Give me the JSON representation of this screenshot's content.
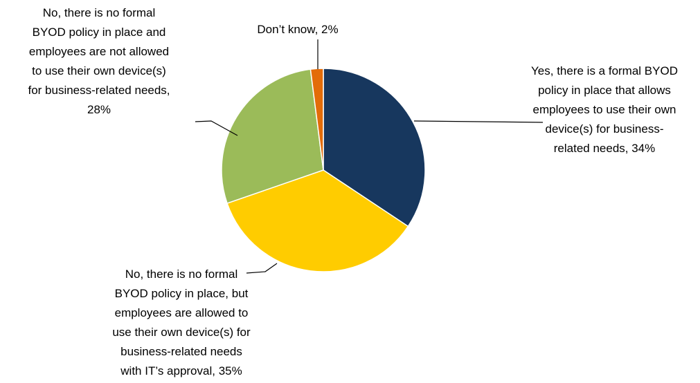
{
  "chart_data": {
    "type": "pie",
    "title": "",
    "slices": [
      {
        "label_lines": [
          "Yes, there is a formal BYOD",
          "policy in place that allows",
          "employees to use their own",
          "device(s) for business-",
          "related needs, 34%"
        ],
        "value": 34,
        "color": "#17375E"
      },
      {
        "label_lines": [
          "No, there is no formal",
          "BYOD policy in place, but",
          "employees are allowed to",
          "use their own device(s) for",
          "business-related needs",
          "with IT’s approval, 35%"
        ],
        "value": 35,
        "color": "#FFCC00"
      },
      {
        "label_lines": [
          "No, there is no formal",
          "BYOD policy in place and",
          "employees are not allowed",
          "to use their own device(s)",
          "for business-related needs,",
          "28%"
        ],
        "value": 28,
        "color": "#9BBB59"
      },
      {
        "label_lines": [
          "Don’t know, 2%"
        ],
        "value": 2,
        "color": "#E36C09"
      }
    ]
  }
}
